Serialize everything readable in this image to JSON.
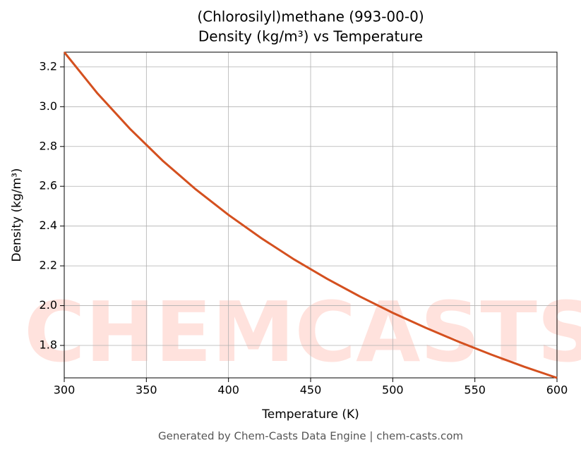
{
  "chart_data": {
    "type": "line",
    "title": "(Chlorosilyl)methane (993-00-0)",
    "subtitle": "Density (kg/m³) vs Temperature",
    "x_label": "Temperature (K)",
    "y_label": "Density (kg/m³)",
    "footer": "Generated by Chem-Casts Data Engine | chem-casts.com",
    "watermark": "CHEMCASTS",
    "x": [
      300,
      320,
      340,
      360,
      380,
      400,
      420,
      440,
      460,
      480,
      500,
      520,
      540,
      560,
      580,
      600
    ],
    "series": [
      {
        "name": "Density",
        "color": "#d4501f",
        "values": [
          3.274,
          3.069,
          2.889,
          2.728,
          2.585,
          2.456,
          2.339,
          2.232,
          2.135,
          2.046,
          1.964,
          1.889,
          1.819,
          1.754,
          1.693,
          1.637
        ]
      }
    ],
    "xlim": [
      300,
      600
    ],
    "xticks": [
      300,
      350,
      400,
      450,
      500,
      550,
      600
    ],
    "ylim": [
      1.637,
      3.274
    ],
    "yticks": [
      1.8,
      {
        "value": 2,
        "label": "2.0"
      },
      2.2,
      2.4,
      2.6,
      2.8,
      {
        "value": 3,
        "label": "3.0"
      },
      3.2
    ],
    "grid": true
  }
}
